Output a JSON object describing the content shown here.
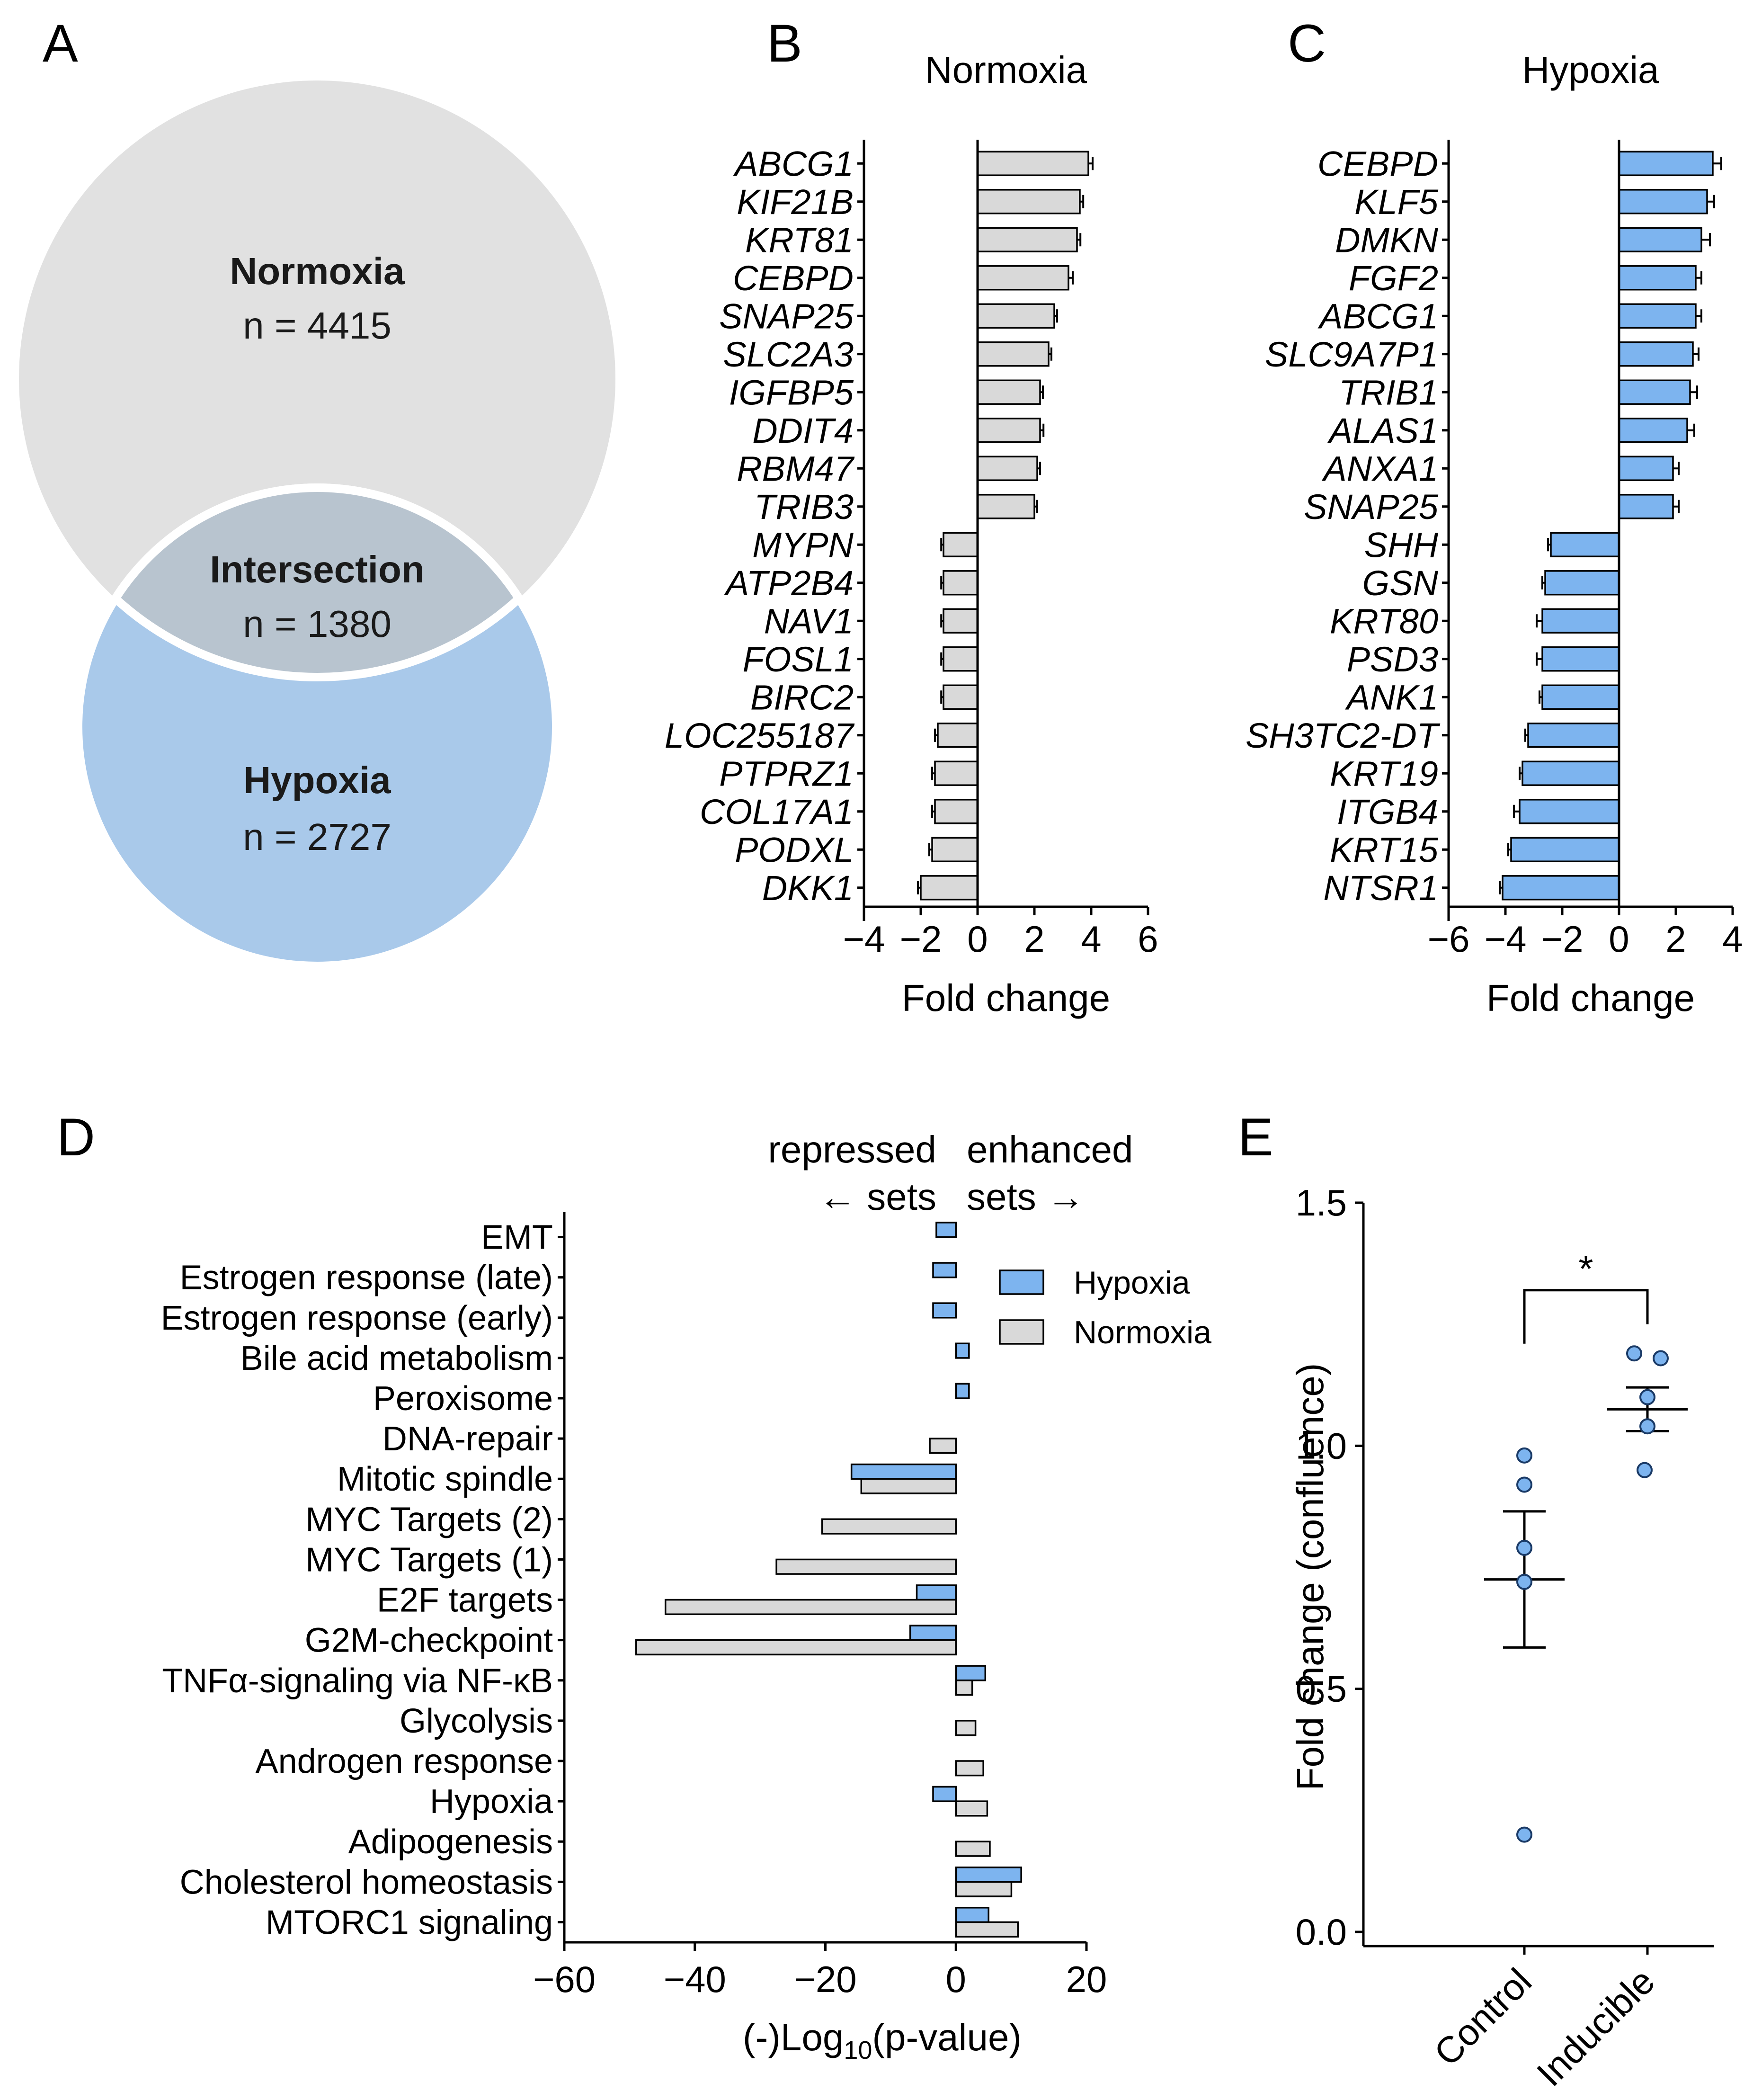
{
  "panels": {
    "A": "A",
    "B": "B",
    "C": "C",
    "D": "D",
    "E": "E"
  },
  "colors": {
    "gray": "#d9d9d9",
    "blue": "#7db4ef",
    "venn_gray": "#e1e1e1",
    "venn_blue": "#a9c9ea",
    "venn_intersection": "#b8c4cf"
  },
  "venn": {
    "normoxia": {
      "label": "Normoxia",
      "n": "n = 4415"
    },
    "intersection": {
      "label": "Intersection",
      "n": "n = 1380"
    },
    "hypoxia": {
      "label": "Hypoxia",
      "n": "n = 2727"
    }
  },
  "chart_data": [
    {
      "id": "B",
      "type": "bar",
      "orientation": "horizontal",
      "title": "Normoxia",
      "xlabel": "Fold change",
      "xlim": [
        -4,
        6
      ],
      "xticks": [
        "−4",
        "−2",
        "0",
        "2",
        "4",
        "6"
      ],
      "xtick_values": [
        -4,
        -2,
        0,
        2,
        4,
        6
      ],
      "color": "#d9d9d9",
      "categories": [
        "ABCG1",
        "KIF21B",
        "KRT81",
        "CEBPD",
        "SNAP25",
        "SLC2A3",
        "IGFBP5",
        "DDIT4",
        "RBM47",
        "TRIB3",
        "MYPN",
        "ATP2B4",
        "NAV1",
        "FOSL1",
        "BIRC2",
        "LOC255187",
        "PTPRZ1",
        "COL17A1",
        "PODXL",
        "DKK1"
      ],
      "values": [
        3.9,
        3.6,
        3.5,
        3.2,
        2.7,
        2.5,
        2.2,
        2.2,
        2.1,
        2.0,
        -1.2,
        -1.2,
        -1.2,
        -1.2,
        -1.2,
        -1.4,
        -1.5,
        -1.5,
        -1.6,
        -2.0
      ],
      "errors": [
        0.15,
        0.12,
        0.12,
        0.15,
        0.1,
        0.1,
        0.1,
        0.12,
        0.1,
        0.1,
        0.08,
        0.08,
        0.08,
        0.08,
        0.08,
        0.1,
        0.1,
        0.1,
        0.1,
        0.1
      ]
    },
    {
      "id": "C",
      "type": "bar",
      "orientation": "horizontal",
      "title": "Hypoxia",
      "xlabel": "Fold change",
      "xlim": [
        -6,
        4
      ],
      "xticks": [
        "−6",
        "−4",
        "−2",
        "0",
        "2",
        "4"
      ],
      "xtick_values": [
        -6,
        -4,
        -2,
        0,
        2,
        4
      ],
      "color": "#7db4ef",
      "categories": [
        "CEBPD",
        "KLF5",
        "DMKN",
        "FGF2",
        "ABCG1",
        "SLC9A7P1",
        "TRIB1",
        "ALAS1",
        "ANXA1",
        "SNAP25",
        "SHH",
        "GSN",
        "KRT80",
        "PSD3",
        "ANK1",
        "SH3TC2-DT",
        "KRT19",
        "ITGB4",
        "KRT15",
        "NTSR1"
      ],
      "values": [
        3.3,
        3.1,
        2.9,
        2.7,
        2.7,
        2.6,
        2.5,
        2.4,
        1.9,
        1.9,
        -2.4,
        -2.6,
        -2.7,
        -2.7,
        -2.7,
        -3.2,
        -3.4,
        -3.5,
        -3.8,
        -4.1
      ],
      "errors": [
        0.3,
        0.25,
        0.3,
        0.2,
        0.2,
        0.2,
        0.25,
        0.25,
        0.2,
        0.2,
        0.1,
        0.1,
        0.2,
        0.2,
        0.1,
        0.1,
        0.1,
        0.2,
        0.1,
        0.1
      ]
    },
    {
      "id": "D",
      "type": "bar",
      "orientation": "horizontal",
      "xlabel": "(-)Log",
      "xlabel_sub": "10",
      "xlabel_tail": "(p-value)",
      "xlim": [
        -60,
        20
      ],
      "xticks": [
        "−60",
        "−40",
        "−20",
        "0",
        "20"
      ],
      "xtick_values": [
        -60,
        -40,
        -20,
        0,
        20
      ],
      "annot_left": [
        "repressed",
        "← sets"
      ],
      "annot_right": [
        "enhanced",
        "sets →"
      ],
      "legend": {
        "position": "right",
        "items": [
          "Hypoxia",
          "Normoxia"
        ]
      },
      "categories": [
        "EMT",
        "Estrogen response (late)",
        "Estrogen response (early)",
        "Bile acid metabolism",
        "Peroxisome",
        "DNA-repair",
        "Mitotic spindle",
        "MYC Targets (2)",
        "MYC Targets (1)",
        "E2F targets",
        "G2M-checkpoint",
        "TNFα-signaling via NF-κB",
        "Glycolysis",
        "Androgen response",
        "Hypoxia",
        "Adipogenesis",
        "Cholesterol homeostasis",
        "MTORC1 signaling"
      ],
      "series": [
        {
          "name": "Hypoxia",
          "color": "#7db4ef",
          "values": [
            -3,
            -3.5,
            -3.5,
            2,
            2,
            null,
            -16,
            null,
            null,
            -6,
            -7,
            4.5,
            null,
            null,
            -3.5,
            null,
            10,
            5
          ]
        },
        {
          "name": "Normoxia",
          "color": "#d9d9d9",
          "values": [
            null,
            null,
            null,
            null,
            null,
            -4,
            -14.5,
            -20.5,
            -27.5,
            -44.5,
            -49,
            2.5,
            3,
            4.2,
            4.8,
            5.2,
            8.5,
            9.5
          ]
        }
      ]
    },
    {
      "id": "E",
      "type": "scatter",
      "ylabel": "Fold change (confluence)",
      "ylim": [
        0,
        1.5
      ],
      "yticks": [
        "0.0",
        "0.5",
        "1.0",
        "1.5"
      ],
      "ytick_values": [
        0,
        0.5,
        1.0,
        1.5
      ],
      "categories": [
        "Control",
        "Inducible"
      ],
      "color": "#7db4ef",
      "points": [
        [
          0.98,
          0.92,
          0.79,
          0.72,
          0.2
        ],
        [
          1.19,
          1.18,
          1.1,
          1.04,
          0.95
        ]
      ],
      "mean": [
        0.725,
        1.075
      ],
      "sem": [
        0.14,
        0.045
      ],
      "significance": "*"
    }
  ]
}
